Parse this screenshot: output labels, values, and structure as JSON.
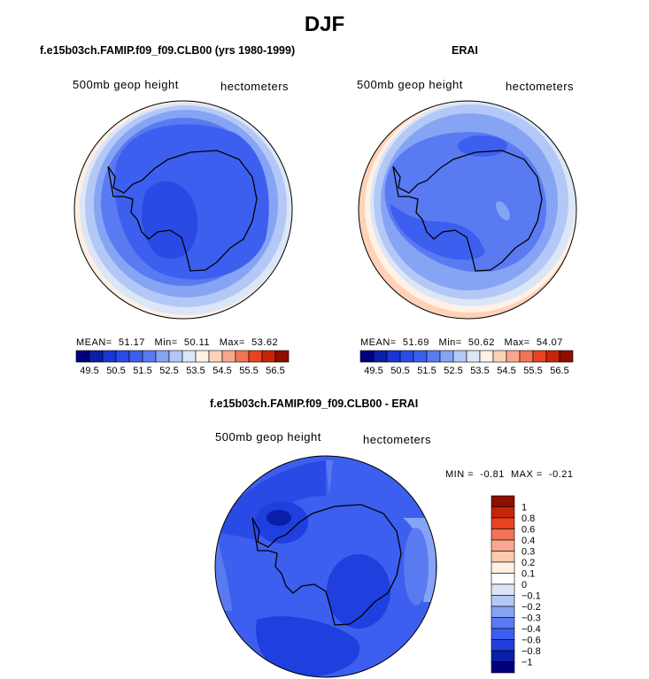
{
  "figure": {
    "title": "DJF"
  },
  "panels": {
    "model": {
      "title": "f.e15b03ch.FAMIP.f09_f09.CLB00 (yrs 1980-1999)",
      "left_label": "500mb geop height",
      "right_label": "hectometers",
      "stats": {
        "mean_label": "MEAN=",
        "mean": "51.17",
        "min_label": "Min=",
        "min": "50.11",
        "max_label": "Max=",
        "max": "53.62"
      }
    },
    "erai": {
      "title": "ERAI",
      "left_label": "500mb geop height",
      "right_label": "hectometers",
      "stats": {
        "mean_label": "MEAN=",
        "mean": "51.69",
        "min_label": "Min=",
        "min": "50.62",
        "max_label": "Max=",
        "max": "54.07"
      }
    },
    "diff": {
      "title": "f.e15b03ch.FAMIP.f09_f09.CLB00 - ERAI",
      "left_label": "500mb geop height",
      "right_label": "hectometers",
      "minmax": {
        "min_label": "MIN =",
        "min": "-0.81",
        "max_label": "MAX =",
        "max": "-0.21"
      }
    }
  },
  "chart_data": [
    {
      "type": "heatmap",
      "projection": "polar stereographic (south pole)",
      "title": "f.e15b03ch.FAMIP.f09_f09.CLB00 (yrs 1980-1999)",
      "field": "500mb geop height",
      "units": "hectometers",
      "mean": 51.17,
      "min": 50.11,
      "max": 53.62,
      "colorbar": {
        "labels": [
          "49.5",
          "50.5",
          "51.5",
          "52.5",
          "53.5",
          "54.5",
          "55.5",
          "56.5"
        ],
        "colors": [
          "#00007f",
          "#0a1fa8",
          "#1836d1",
          "#2a4ae6",
          "#3d5fef",
          "#5a7af2",
          "#86a4f4",
          "#b3c8f6",
          "#dbe6f7",
          "#fff1e6",
          "#ffd2b8",
          "#f8a68d",
          "#f27355",
          "#e94220",
          "#c62509",
          "#8c0f00"
        ]
      }
    },
    {
      "type": "heatmap",
      "projection": "polar stereographic (south pole)",
      "title": "ERAI",
      "field": "500mb geop height",
      "units": "hectometers",
      "mean": 51.69,
      "min": 50.62,
      "max": 54.07,
      "colorbar": {
        "labels": [
          "49.5",
          "50.5",
          "51.5",
          "52.5",
          "53.5",
          "54.5",
          "55.5",
          "56.5"
        ],
        "colors": [
          "#00007f",
          "#0a1fa8",
          "#1836d1",
          "#2a4ae6",
          "#3d5fef",
          "#5a7af2",
          "#86a4f4",
          "#b3c8f6",
          "#dbe6f7",
          "#fff1e6",
          "#ffd2b8",
          "#f8a68d",
          "#f27355",
          "#e94220",
          "#c62509",
          "#8c0f00"
        ]
      }
    },
    {
      "type": "heatmap",
      "projection": "polar stereographic (south pole)",
      "title": "f.e15b03ch.FAMIP.f09_f09.CLB00 - ERAI",
      "field": "500mb geop height",
      "units": "hectometers",
      "min": -0.81,
      "max": -0.21,
      "colorbar": {
        "labels": [
          "1",
          "0.8",
          "0.6",
          "0.4",
          "0.3",
          "0.2",
          "0.1",
          "0",
          "−0.1",
          "−0.2",
          "−0.3",
          "−0.4",
          "−0.6",
          "−0.8",
          "−1"
        ],
        "colors": [
          "#8c0f00",
          "#c62509",
          "#e94220",
          "#f27355",
          "#f8a68d",
          "#ffc9ad",
          "#fff1e6",
          "#ffffff",
          "#dbe6f7",
          "#b3c8f6",
          "#86a4f4",
          "#5a7af2",
          "#3d5fef",
          "#1f40df",
          "#0a1fa8",
          "#00007f"
        ]
      }
    }
  ]
}
